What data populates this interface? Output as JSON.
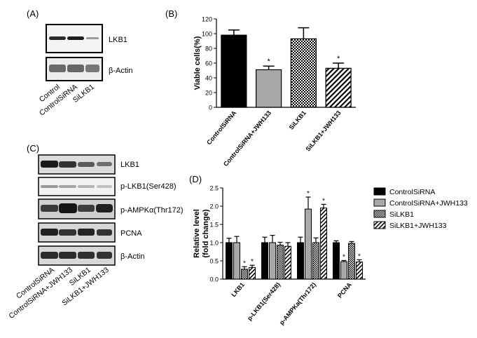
{
  "panels": {
    "a": {
      "label": "(A)",
      "blots": [
        "LKB1",
        "β-Actin"
      ],
      "lanes": [
        "Control",
        "ControlSiRNA",
        "SiLKB1"
      ]
    },
    "c": {
      "label": "(C)",
      "blots": [
        "LKB1",
        "p-LKB1(Ser428)",
        "p-AMPKα(Thr172)",
        "PCNA",
        "β-Actin"
      ],
      "lanes": [
        "ControlSiRNA",
        "ControlSiRNA+JWH133",
        "SiLKB1",
        "SiLKB1+JWH133"
      ]
    }
  },
  "chart_data": [
    {
      "panel_label": "(B)",
      "type": "bar",
      "ylabel": "Viable cells(%)",
      "ylim": [
        0,
        120
      ],
      "yticks": [
        "0",
        "20",
        "40",
        "60",
        "80",
        "100",
        "120"
      ],
      "categories": [
        "ControlSiRNA",
        "ControlSiRNA+JWH133",
        "SiLKB1",
        "SiLKB1+JWH133"
      ],
      "values": [
        98,
        51,
        93,
        53
      ],
      "errors": [
        7,
        5,
        15,
        7
      ],
      "significance": [
        "",
        "*",
        "",
        "*"
      ],
      "fills": [
        "black",
        "gray",
        "checker",
        "diagonal"
      ]
    },
    {
      "panel_label": "(D)",
      "type": "bar",
      "ylabel": "Relative level\n(fold change)",
      "ylim": [
        0,
        2.5
      ],
      "yticks": [
        "0.0",
        "0.5",
        "1.0",
        "1.5",
        "2.0",
        "2.5"
      ],
      "categories": [
        "LKB1",
        "p-LKB1(Ser428)",
        "p-AMPKa(Thr172)",
        "PCNA"
      ],
      "series": [
        {
          "name": "ControlSiRNA",
          "fill": "black",
          "values": [
            1.0,
            1.0,
            1.0,
            1.0
          ],
          "errors": [
            0.12,
            0.15,
            0.15,
            0.05
          ],
          "significance": [
            "",
            "",
            "",
            ""
          ]
        },
        {
          "name": "ControlSiRNA+JWH133",
          "fill": "gray",
          "values": [
            1.0,
            1.0,
            1.92,
            0.48
          ],
          "errors": [
            0.17,
            0.2,
            0.33,
            0.03
          ],
          "significance": [
            "",
            "",
            "*",
            "*"
          ]
        },
        {
          "name": "SiLKB1",
          "fill": "checker",
          "values": [
            0.27,
            0.93,
            1.0,
            0.98
          ],
          "errors": [
            0.07,
            0.08,
            0.13,
            0.05
          ],
          "significance": [
            "*",
            "",
            "",
            ""
          ]
        },
        {
          "name": "SiLKB1+JWH133",
          "fill": "diagonal",
          "values": [
            0.32,
            0.9,
            1.95,
            0.47
          ],
          "errors": [
            0.06,
            0.1,
            0.1,
            0.06
          ],
          "significance": [
            "*",
            "",
            "*",
            "*"
          ]
        }
      ]
    }
  ]
}
